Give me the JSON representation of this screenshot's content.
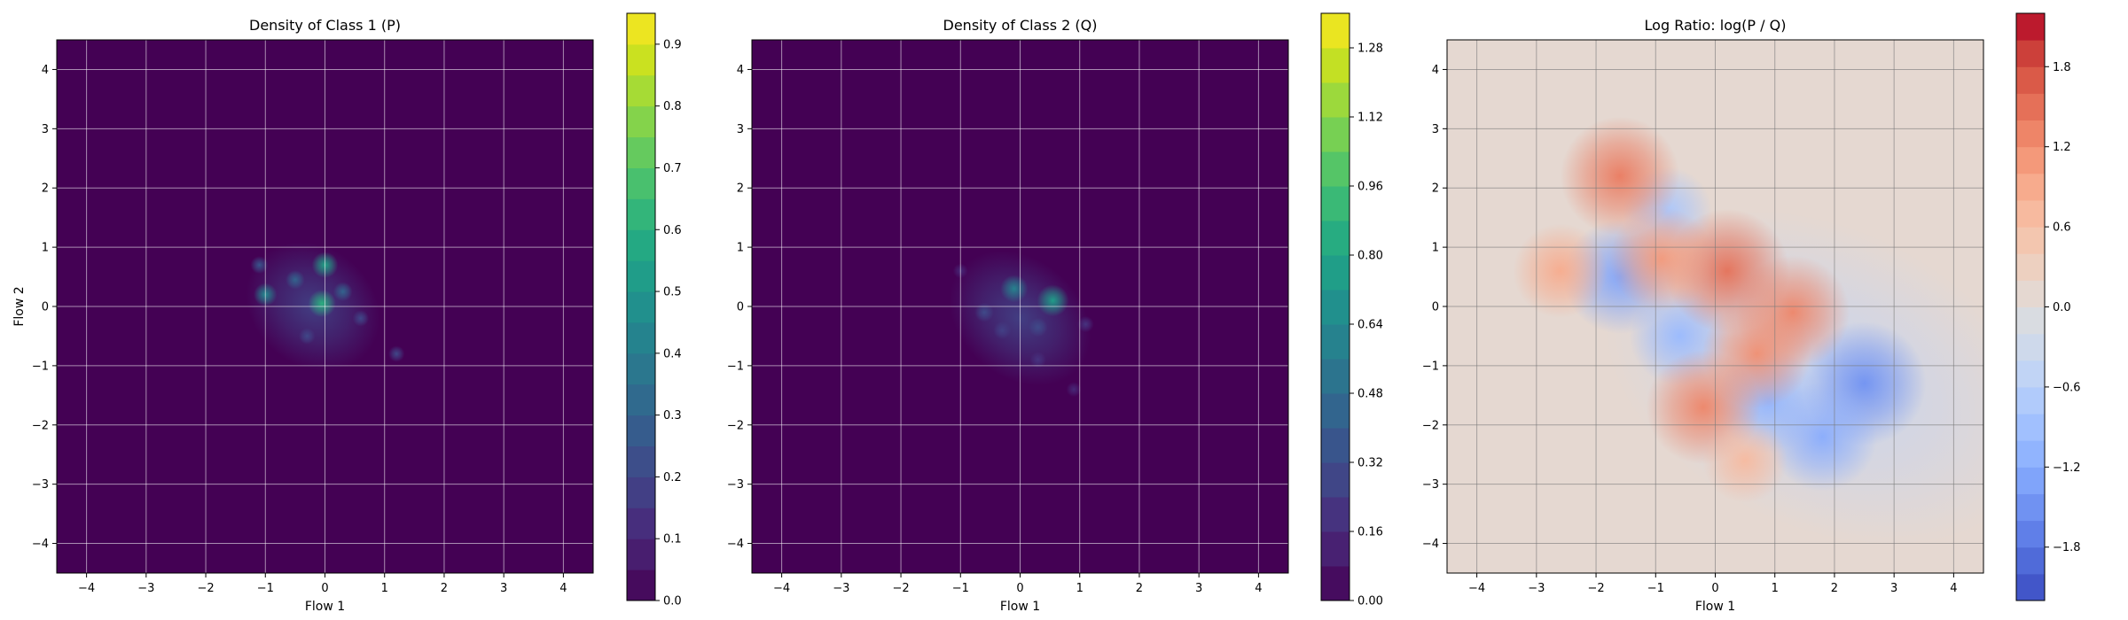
{
  "chart_data": [
    {
      "type": "heatmap",
      "title": "Density of Class 1 (P)",
      "xlabel": "Flow 1",
      "ylabel": "Flow 2",
      "xlim": [
        -4.5,
        4.5
      ],
      "ylim": [
        -4.5,
        4.5
      ],
      "xticks": [
        "−4",
        "−3",
        "−2",
        "−1",
        "0",
        "1",
        "2",
        "3",
        "4"
      ],
      "yticks": [
        "−4",
        "−3",
        "−2",
        "−1",
        "0",
        "1",
        "2",
        "3",
        "4"
      ],
      "grid": true,
      "colormap": "viridis",
      "colorbar": {
        "min": 0.0,
        "max": 0.95,
        "levels": 19,
        "ticks": [
          "0.0",
          "0.1",
          "0.2",
          "0.3",
          "0.4",
          "0.5",
          "0.6",
          "0.7",
          "0.8",
          "0.9"
        ],
        "tick_values": [
          0,
          0.1,
          0.2,
          0.3,
          0.4,
          0.5,
          0.6,
          0.7,
          0.8,
          0.9
        ]
      },
      "blob_region": {
        "center": [
          -0.2,
          0.0
        ],
        "spread": [
          1.2,
          1.0
        ],
        "orientation_deg": -40
      },
      "hotspots": [
        {
          "x": 0.0,
          "y": 0.7,
          "value": 0.55
        },
        {
          "x": -0.05,
          "y": 0.05,
          "value": 0.6
        },
        {
          "x": -1.0,
          "y": 0.2,
          "value": 0.45
        },
        {
          "x": -0.5,
          "y": 0.45,
          "value": 0.3
        },
        {
          "x": 0.3,
          "y": 0.25,
          "value": 0.3
        },
        {
          "x": -1.1,
          "y": 0.7,
          "value": 0.25
        },
        {
          "x": 1.2,
          "y": -0.8,
          "value": 0.2
        },
        {
          "x": -0.3,
          "y": -0.5,
          "value": 0.2
        },
        {
          "x": 0.6,
          "y": -0.2,
          "value": 0.2
        }
      ]
    },
    {
      "type": "heatmap",
      "title": "Density of Class 2 (Q)",
      "xlabel": "Flow 1",
      "ylabel": "",
      "xlim": [
        -4.5,
        4.5
      ],
      "ylim": [
        -4.5,
        4.5
      ],
      "xticks": [
        "−4",
        "−3",
        "−2",
        "−1",
        "0",
        "1",
        "2",
        "3",
        "4"
      ],
      "yticks": [
        "−4",
        "−3",
        "−2",
        "−1",
        "0",
        "1",
        "2",
        "3",
        "4"
      ],
      "grid": true,
      "colormap": "viridis",
      "colorbar": {
        "min": 0.0,
        "max": 1.36,
        "levels": 17,
        "ticks": [
          "0.00",
          "0.16",
          "0.32",
          "0.48",
          "0.64",
          "0.80",
          "0.96",
          "1.12",
          "1.28"
        ],
        "tick_values": [
          0,
          0.16,
          0.32,
          0.48,
          0.64,
          0.8,
          0.96,
          1.12,
          1.28
        ]
      },
      "blob_region": {
        "center": [
          0.0,
          -0.2
        ],
        "spread": [
          1.3,
          1.0
        ],
        "orientation_deg": -40
      },
      "hotspots": [
        {
          "x": -0.1,
          "y": 0.3,
          "value": 0.6
        },
        {
          "x": 0.55,
          "y": 0.1,
          "value": 0.75
        },
        {
          "x": -0.6,
          "y": -0.1,
          "value": 0.3
        },
        {
          "x": -0.3,
          "y": -0.4,
          "value": 0.25
        },
        {
          "x": 0.3,
          "y": -0.35,
          "value": 0.3
        },
        {
          "x": 0.3,
          "y": -0.9,
          "value": 0.2
        },
        {
          "x": -1.0,
          "y": 0.6,
          "value": 0.15
        },
        {
          "x": 1.1,
          "y": -0.3,
          "value": 0.2
        },
        {
          "x": 0.9,
          "y": -1.4,
          "value": 0.15
        }
      ]
    },
    {
      "type": "heatmap",
      "title": "Log Ratio: log(P / Q)",
      "xlabel": "Flow 1",
      "ylabel": "",
      "xlim": [
        -4.5,
        4.5
      ],
      "ylim": [
        -4.5,
        4.5
      ],
      "xticks": [
        "−4",
        "−3",
        "−2",
        "−1",
        "0",
        "1",
        "2",
        "3",
        "4"
      ],
      "yticks": [
        "−4",
        "−3",
        "−2",
        "−1",
        "0",
        "1",
        "2",
        "3",
        "4"
      ],
      "grid": true,
      "colormap": "coolwarm",
      "colorbar": {
        "min": -2.2,
        "max": 2.2,
        "levels": 22,
        "ticks": [
          "−1.8",
          "−1.2",
          "−0.6",
          "0.0",
          "0.6",
          "1.2",
          "1.8"
        ],
        "tick_values": [
          -1.8,
          -1.2,
          -0.6,
          0,
          0.6,
          1.2,
          1.8
        ]
      },
      "positive_regions": [
        {
          "x": -1.6,
          "y": 2.2,
          "value": 1.4
        },
        {
          "x": -2.6,
          "y": 0.6,
          "value": 0.9
        },
        {
          "x": -0.2,
          "y": -1.7,
          "value": 1.3
        },
        {
          "x": 0.2,
          "y": 0.6,
          "value": 1.5
        },
        {
          "x": 1.3,
          "y": -0.1,
          "value": 1.3
        },
        {
          "x": 0.7,
          "y": -0.8,
          "value": 1.2
        },
        {
          "x": -0.9,
          "y": 0.8,
          "value": 1.1
        },
        {
          "x": 0.5,
          "y": -2.6,
          "value": 0.7
        }
      ],
      "negative_regions": [
        {
          "x": -1.6,
          "y": 0.5,
          "value": -1.3
        },
        {
          "x": 2.5,
          "y": -1.3,
          "value": -1.5
        },
        {
          "x": 1.8,
          "y": -2.2,
          "value": -1.2
        },
        {
          "x": -0.6,
          "y": -0.5,
          "value": -1.0
        },
        {
          "x": 0.9,
          "y": -1.6,
          "value": -1.1
        },
        {
          "x": -0.8,
          "y": 1.6,
          "value": -0.8
        }
      ]
    }
  ]
}
